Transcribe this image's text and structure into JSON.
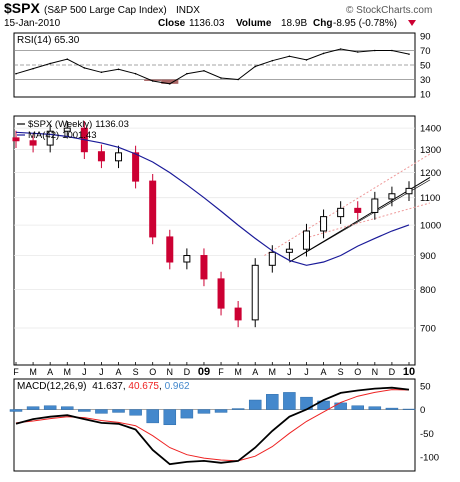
{
  "header": {
    "symbol": "$SPX",
    "name": "(S&P 500 Large Cap Index)",
    "exchange": "INDX",
    "date": "15-Jan-2010",
    "close_label": "Close",
    "close_value": "1136.03",
    "volume_label": "Volume",
    "volume_value": "18.9B",
    "chg_label": "Chg",
    "chg_value": "-8.95 (-0.78%)",
    "brand": "© StockCharts.com"
  },
  "colors": {
    "up": "#000000",
    "down": "#cc0033",
    "ma_line": "#1a1a99",
    "macd_line": "#000000",
    "signal_line": "#ee2222",
    "histogram": "#4488cc",
    "rsi_fill": "#aa6666",
    "trend_dotted": "#ee9999"
  },
  "chart_data": [
    {
      "type": "line",
      "panel": "rsi",
      "title": "RSI(14) 65.30",
      "label": "RSI(14)",
      "value": "65.30",
      "ylim": [
        10,
        90
      ],
      "yticks": [
        90,
        70,
        50,
        30,
        10
      ],
      "reference_lines": [
        70,
        50,
        30
      ],
      "x": [
        "2008-02",
        "2008-03",
        "2008-04",
        "2008-05",
        "2008-06",
        "2008-07",
        "2008-08",
        "2008-09",
        "2008-10",
        "2008-11",
        "2008-12",
        "2009-01",
        "2009-02",
        "2009-03",
        "2009-04",
        "2009-05",
        "2009-06",
        "2009-07",
        "2009-08",
        "2009-09",
        "2009-10",
        "2009-11",
        "2009-12",
        "2010-01"
      ],
      "values": [
        38,
        45,
        52,
        58,
        46,
        40,
        44,
        38,
        28,
        24,
        38,
        42,
        32,
        30,
        48,
        56,
        62,
        57,
        66,
        72,
        68,
        70,
        70,
        65
      ]
    },
    {
      "type": "candlestick",
      "panel": "price",
      "title": "$SPX (Weekly) 1136.03",
      "legend": [
        {
          "name": "$SPX (Weekly)",
          "value": "1136.03"
        },
        {
          "name": "MA(42)",
          "value": "1001.43"
        }
      ],
      "ylim": [
        620,
        1450
      ],
      "log_scale": true,
      "yticks": [
        1400,
        1300,
        1200,
        1100,
        1000,
        900,
        800,
        700
      ],
      "xticks": [
        "F",
        "M",
        "A",
        "M",
        "J",
        "J",
        "A",
        "S",
        "O",
        "N",
        "D",
        "09",
        "F",
        "M",
        "A",
        "M",
        "J",
        "J",
        "A",
        "S",
        "O",
        "N",
        "D",
        "10"
      ],
      "series": [
        {
          "name": "$SPX (Weekly)",
          "x": [
            "2008-02",
            "2008-03",
            "2008-04",
            "2008-05",
            "2008-06",
            "2008-07",
            "2008-08",
            "2008-09",
            "2008-10",
            "2008-11",
            "2008-12",
            "2009-01",
            "2009-02",
            "2009-03",
            "2009-04",
            "2009-05",
            "2009-06",
            "2009-07",
            "2009-08",
            "2009-09",
            "2009-10",
            "2009-11",
            "2009-12",
            "2010-01"
          ],
          "close": [
            1340,
            1320,
            1385,
            1400,
            1290,
            1250,
            1285,
            1165,
            960,
            880,
            900,
            830,
            750,
            720,
            870,
            910,
            920,
            980,
            1030,
            1060,
            1045,
            1095,
            1115,
            1136
          ]
        },
        {
          "name": "MA(42)",
          "x": [
            "2008-02",
            "2008-03",
            "2008-04",
            "2008-05",
            "2008-06",
            "2008-07",
            "2008-08",
            "2008-09",
            "2008-10",
            "2008-11",
            "2008-12",
            "2009-01",
            "2009-02",
            "2009-03",
            "2009-04",
            "2009-05",
            "2009-06",
            "2009-07",
            "2009-08",
            "2009-09",
            "2009-10",
            "2009-11",
            "2009-12",
            "2010-01"
          ],
          "values": [
            1380,
            1375,
            1370,
            1360,
            1345,
            1330,
            1310,
            1280,
            1245,
            1200,
            1150,
            1100,
            1050,
            1000,
            955,
            915,
            885,
            870,
            880,
            900,
            930,
            955,
            980,
            1001
          ]
        }
      ]
    },
    {
      "type": "line",
      "panel": "macd",
      "title": "MACD(12,26,9) 41.637, 40.675, 0.962",
      "label": "MACD(12,26,9)",
      "values_text": [
        "41.637",
        "40.675",
        "0.962"
      ],
      "ylim": [
        -125,
        60
      ],
      "yticks": [
        50,
        0,
        -50,
        -100
      ],
      "series": [
        {
          "name": "MACD",
          "x": [
            "2008-02",
            "2008-03",
            "2008-04",
            "2008-05",
            "2008-06",
            "2008-07",
            "2008-08",
            "2008-09",
            "2008-10",
            "2008-11",
            "2008-12",
            "2009-01",
            "2009-02",
            "2009-03",
            "2009-04",
            "2009-05",
            "2009-06",
            "2009-07",
            "2009-08",
            "2009-09",
            "2009-10",
            "2009-11",
            "2009-12",
            "2010-01"
          ],
          "values": [
            -30,
            -20,
            -15,
            -12,
            -20,
            -28,
            -30,
            -42,
            -85,
            -115,
            -110,
            -108,
            -112,
            -108,
            -80,
            -45,
            -15,
            0,
            20,
            35,
            40,
            44,
            46,
            42
          ]
        },
        {
          "name": "Signal",
          "x": [
            "2008-02",
            "2008-03",
            "2008-04",
            "2008-05",
            "2008-06",
            "2008-07",
            "2008-08",
            "2008-09",
            "2008-10",
            "2008-11",
            "2008-12",
            "2009-01",
            "2009-02",
            "2009-03",
            "2009-04",
            "2009-05",
            "2009-06",
            "2009-07",
            "2009-08",
            "2009-09",
            "2009-10",
            "2009-11",
            "2009-12",
            "2010-01"
          ],
          "values": [
            -28,
            -24,
            -19,
            -15,
            -17,
            -23,
            -27,
            -34,
            -55,
            -80,
            -95,
            -102,
            -106,
            -108,
            -98,
            -78,
            -50,
            -25,
            -5,
            15,
            28,
            36,
            42,
            41
          ]
        },
        {
          "name": "Histogram",
          "x": [
            "2008-02",
            "2008-03",
            "2008-04",
            "2008-05",
            "2008-06",
            "2008-07",
            "2008-08",
            "2008-09",
            "2008-10",
            "2008-11",
            "2008-12",
            "2009-01",
            "2009-02",
            "2009-03",
            "2009-04",
            "2009-05",
            "2009-06",
            "2009-07",
            "2009-08",
            "2009-09",
            "2009-10",
            "2009-11",
            "2009-12",
            "2010-01"
          ],
          "values": [
            -4,
            6,
            8,
            6,
            -4,
            -8,
            -6,
            -12,
            -28,
            -32,
            -18,
            -8,
            -6,
            2,
            20,
            32,
            36,
            26,
            18,
            14,
            8,
            6,
            3,
            1
          ]
        }
      ]
    }
  ]
}
